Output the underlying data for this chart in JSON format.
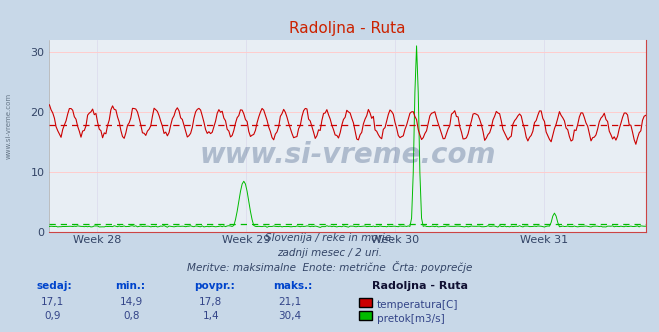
{
  "title": "Radoljna - Ruta",
  "bg_color": "#c8d8e8",
  "plot_bg_color": "#e8eef4",
  "grid_color_h": "#ffcccc",
  "grid_color_v": "#ddddee",
  "x_labels": [
    "Week 28",
    "Week 29",
    "Week 30",
    "Week 31"
  ],
  "ylim": [
    0,
    32
  ],
  "yticks": [
    0,
    10,
    20,
    30
  ],
  "temp_color": "#cc0000",
  "flow_color": "#00bb00",
  "temp_avg": 17.8,
  "flow_avg": 1.4,
  "n_points": 360,
  "subtitle1": "Slovenija / reke in morje.",
  "subtitle2": "zadnji mesec / 2 uri.",
  "subtitle3": "Meritve: maksimalne  Enote: metrične  Črta: povprečje",
  "legend_title": "Radoljna - Ruta",
  "legend_temp": "temperatura[C]",
  "legend_flow": "pretok[m3/s]",
  "table_headers": [
    "sedaj:",
    "min.:",
    "povpr.:",
    "maks.:"
  ],
  "table_temp": [
    "17,1",
    "14,9",
    "17,8",
    "21,1"
  ],
  "table_flow": [
    "0,9",
    "0,8",
    "1,4",
    "30,4"
  ],
  "watermark": "www.si-vreme.com",
  "watermark_color": "#1a3a6a",
  "left_label": "www.si-vreme.com",
  "left_label_color": "#445566"
}
